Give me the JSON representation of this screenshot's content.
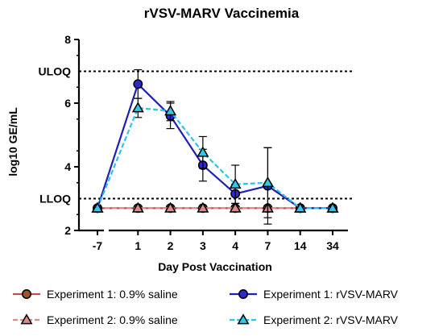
{
  "chart_data": {
    "type": "line",
    "title": "rVSV-MARV Vaccinemia",
    "xlabel": "Day Post Vaccination",
    "ylabel": "log10 GE/mL",
    "categories": [
      "-7",
      "1",
      "2",
      "3",
      "4",
      "7",
      "14",
      "34"
    ],
    "ylim": [
      2,
      8
    ],
    "yticks": [
      2,
      4,
      6,
      8
    ],
    "reference_lines": [
      {
        "label": "ULOQ",
        "value": 7.0
      },
      {
        "label": "LLOQ",
        "value": 3.0
      }
    ],
    "legend": {
      "placement": "bottom"
    },
    "series": [
      {
        "name": "Experiment 1: 0.9% saline",
        "marker": "circle",
        "line_style": "solid",
        "line_color": "#c0504d",
        "marker_fill": "#a0522d",
        "values": [
          2.7,
          2.7,
          2.7,
          2.7,
          2.7,
          2.7,
          2.7,
          2.7
        ],
        "err": [
          0,
          0,
          0,
          0,
          0,
          0,
          0,
          0
        ]
      },
      {
        "name": "Experiment 2: 0.9% saline",
        "marker": "triangle",
        "line_style": "dashed",
        "line_color": "#e08a8a",
        "marker_fill": "#d98c8c",
        "values": [
          2.7,
          2.7,
          2.7,
          2.7,
          2.7,
          2.7,
          2.7,
          2.7
        ],
        "err": [
          0,
          0,
          0,
          0,
          0,
          0,
          0,
          0
        ]
      },
      {
        "name": "Experiment 1: rVSV-MARV",
        "marker": "circle",
        "line_style": "solid",
        "line_color": "#1f1fb4",
        "marker_fill": "#2a2ad0",
        "values": [
          2.7,
          6.6,
          5.6,
          4.05,
          3.15,
          3.4,
          2.7,
          2.7
        ],
        "err": [
          0,
          0.45,
          0.4,
          0.5,
          0.3,
          1.2,
          0,
          0
        ]
      },
      {
        "name": "Experiment 2: rVSV-MARV",
        "marker": "triangle",
        "line_style": "dashed",
        "line_color": "#2ec4e6",
        "marker_fill": "#35c6e8",
        "values": [
          2.7,
          5.85,
          5.75,
          4.45,
          3.45,
          3.5,
          2.7,
          2.7
        ],
        "err": [
          0,
          0.3,
          0.3,
          0.5,
          0.6,
          1.1,
          0,
          0
        ]
      }
    ]
  }
}
